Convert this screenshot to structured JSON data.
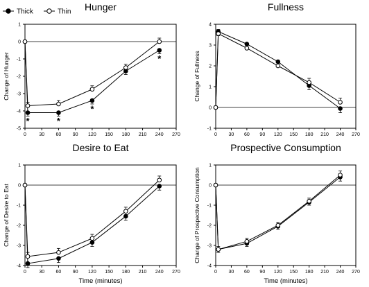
{
  "legend": {
    "entries": [
      {
        "name": "Thick",
        "marker": "filled-circle"
      },
      {
        "name": "Thin",
        "marker": "open-circle"
      }
    ]
  },
  "chart_data": [
    {
      "type": "line",
      "title": "Hunger",
      "xlabel": "",
      "ylabel": "Change of Hunger",
      "xlim": [
        0,
        270
      ],
      "ylim": [
        -5,
        1
      ],
      "xticks": [
        0,
        30,
        60,
        90,
        120,
        150,
        180,
        210,
        240,
        270
      ],
      "yticks": [
        -5,
        -4,
        -3,
        -2,
        -1,
        0,
        1
      ],
      "x": [
        0,
        5,
        60,
        120,
        180,
        240
      ],
      "series": [
        {
          "name": "Thick",
          "values": [
            0,
            -4.1,
            -4.1,
            -3.4,
            -1.7,
            -0.5
          ],
          "err": [
            0,
            0.2,
            0.2,
            0.2,
            0.2,
            0.2
          ]
        },
        {
          "name": "Thin",
          "values": [
            0,
            -3.7,
            -3.6,
            -2.75,
            -1.5,
            0
          ],
          "err": [
            0,
            0.2,
            0.2,
            0.2,
            0.2,
            0.2
          ]
        }
      ],
      "annotations": [
        {
          "x": 5,
          "y": -4.55,
          "text": "*"
        },
        {
          "x": 60,
          "y": -4.55,
          "text": "*"
        },
        {
          "x": 120,
          "y": -3.85,
          "text": "*"
        },
        {
          "x": 240,
          "y": -0.95,
          "text": "*"
        }
      ]
    },
    {
      "type": "line",
      "title": "Fullness",
      "xlabel": "",
      "ylabel": "Change of Fullness",
      "xlim": [
        0,
        270
      ],
      "ylim": [
        -1,
        4
      ],
      "xticks": [
        0,
        30,
        60,
        90,
        120,
        150,
        180,
        210,
        240,
        270
      ],
      "yticks": [
        -1,
        0,
        1,
        2,
        3,
        4
      ],
      "x": [
        0,
        5,
        60,
        120,
        180,
        240
      ],
      "series": [
        {
          "name": "Thick",
          "values": [
            0,
            3.65,
            3.05,
            2.2,
            1.05,
            -0.05
          ],
          "err": [
            0,
            0.2,
            0.2,
            0.2,
            0.2,
            0.2
          ]
        },
        {
          "name": "Thin",
          "values": [
            0,
            3.55,
            2.85,
            2.0,
            1.2,
            0.25
          ],
          "err": [
            0,
            0.2,
            0.2,
            0.2,
            0.2,
            0.2
          ]
        }
      ]
    },
    {
      "type": "line",
      "title": "Desire to Eat",
      "xlabel": "Time (minutes)",
      "ylabel": "Change of Desire to Eat",
      "xlim": [
        0,
        270
      ],
      "ylim": [
        -4,
        1
      ],
      "xticks": [
        0,
        30,
        60,
        90,
        120,
        150,
        180,
        210,
        240,
        270
      ],
      "yticks": [
        -4,
        -3,
        -2,
        -1,
        0,
        1
      ],
      "x": [
        0,
        5,
        60,
        120,
        180,
        240
      ],
      "series": [
        {
          "name": "Thick",
          "values": [
            0,
            -3.9,
            -3.65,
            -2.85,
            -1.55,
            -0.05
          ],
          "err": [
            0,
            0.2,
            0.2,
            0.2,
            0.2,
            0.2
          ]
        },
        {
          "name": "Thin",
          "values": [
            0,
            -3.55,
            -3.35,
            -2.65,
            -1.3,
            0.25
          ],
          "err": [
            0,
            0.2,
            0.2,
            0.2,
            0.2,
            0.2
          ]
        }
      ]
    },
    {
      "type": "line",
      "title": "Prospective Consumption",
      "xlabel": "Time (minutes)",
      "ylabel": "Change of Prospective Consumption",
      "xlim": [
        0,
        270
      ],
      "ylim": [
        -4,
        1
      ],
      "xticks": [
        0,
        30,
        60,
        90,
        120,
        150,
        180,
        210,
        240,
        270
      ],
      "yticks": [
        -4,
        -3,
        -2,
        -1,
        0,
        1
      ],
      "x": [
        0,
        5,
        60,
        120,
        180,
        240
      ],
      "series": [
        {
          "name": "Thick",
          "values": [
            0,
            -3.2,
            -2.9,
            -2.05,
            -0.85,
            0.4
          ],
          "err": [
            0,
            0.15,
            0.15,
            0.15,
            0.15,
            0.2
          ]
        },
        {
          "name": "Thin",
          "values": [
            0,
            -3.2,
            -2.8,
            -2.0,
            -0.8,
            0.5
          ],
          "err": [
            0,
            0.15,
            0.15,
            0.15,
            0.15,
            0.2
          ]
        }
      ]
    }
  ]
}
